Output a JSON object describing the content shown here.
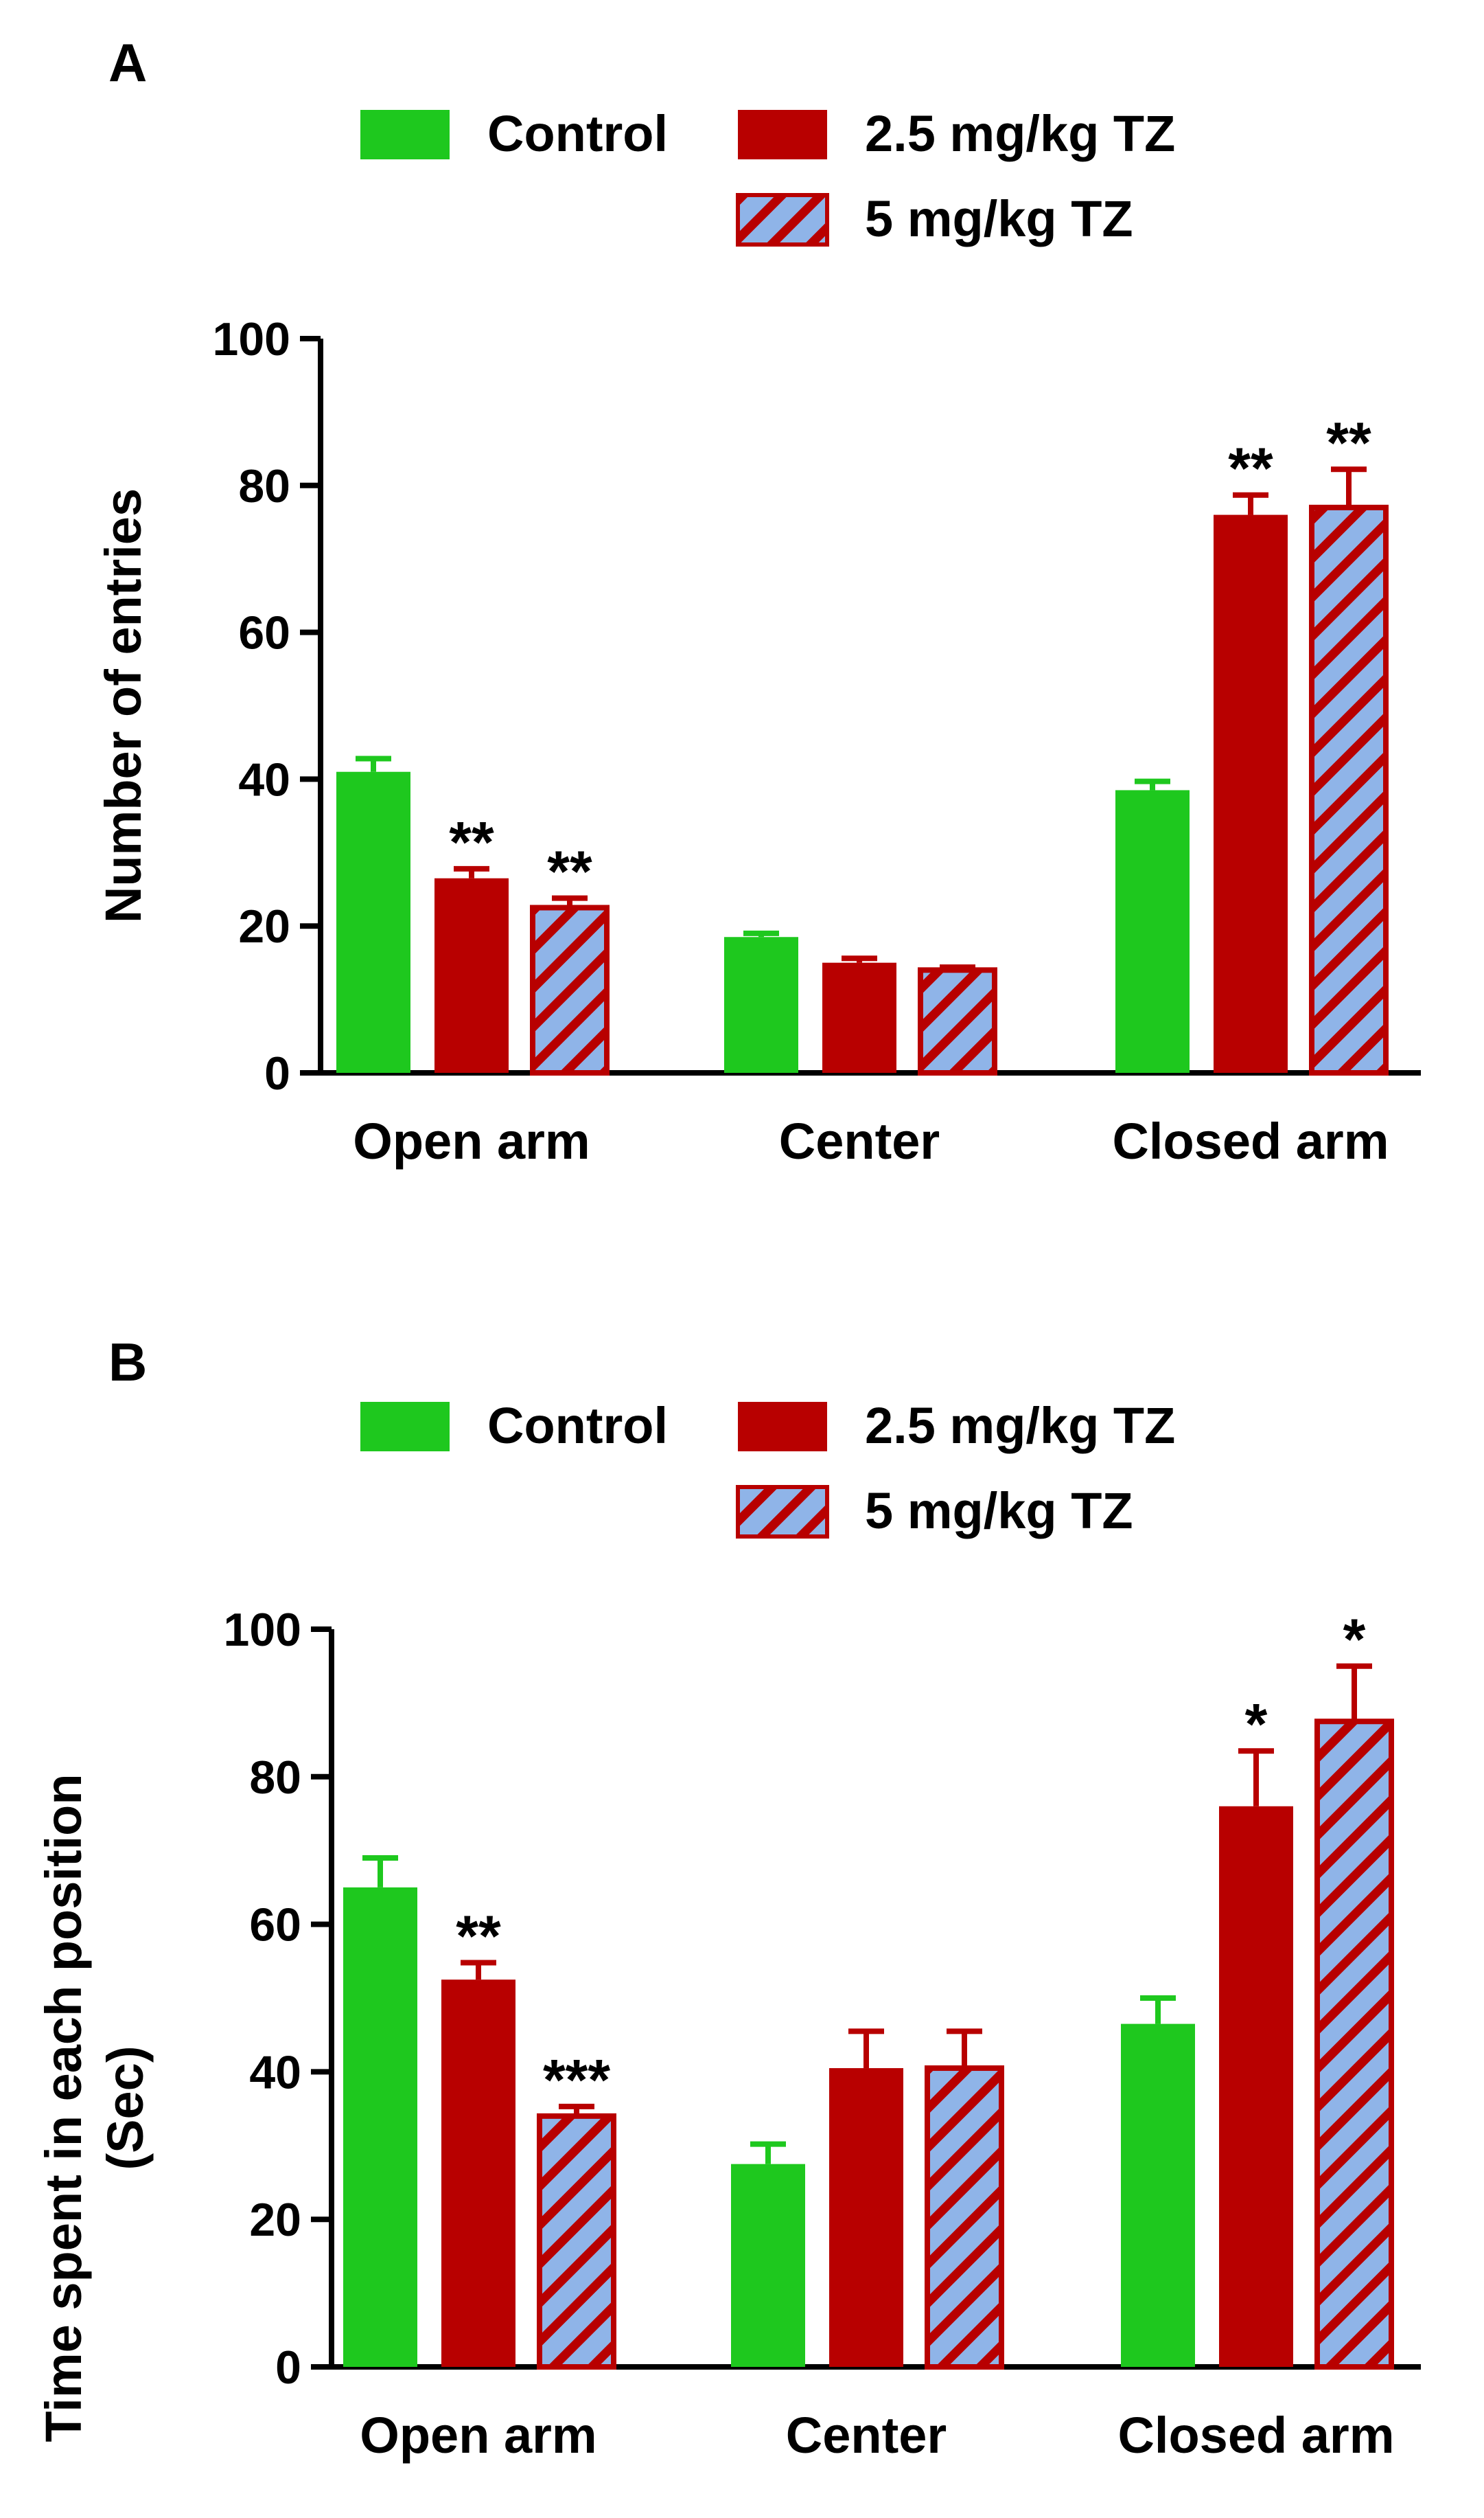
{
  "colors": {
    "control": "#1ec81e",
    "tz_2_5": "#b80000",
    "tz_5_fill": "#8fb4e8",
    "tz_5_stripe": "#b80000",
    "axis": "#000000"
  },
  "chart_data": [
    {
      "panel": "A",
      "type": "bar",
      "title": "",
      "legend": [
        "Control",
        "2.5 mg/kg TZ",
        "5 mg/kg TZ"
      ],
      "legend_position": "top",
      "categories": [
        "Open arm",
        "Center",
        "Closed arm"
      ],
      "xlabel": "",
      "ylabel": "Number of entries",
      "ylim": [
        0,
        100
      ],
      "yticks": [
        0,
        20,
        40,
        60,
        80,
        100
      ],
      "series": [
        {
          "name": "Control",
          "values": [
            41,
            18.5,
            38.5
          ],
          "errors": [
            1.8,
            0.5,
            1.2
          ],
          "significance": [
            "",
            "",
            ""
          ]
        },
        {
          "name": "2.5 mg/kg TZ",
          "values": [
            26.5,
            15,
            76
          ],
          "errors": [
            1.3,
            0.6,
            2.7
          ],
          "significance": [
            "**",
            "",
            "**"
          ]
        },
        {
          "name": "5 mg/kg TZ",
          "values": [
            22.5,
            14,
            77
          ],
          "errors": [
            1.3,
            0.4,
            5.2
          ],
          "significance": [
            "**",
            "",
            "**"
          ]
        }
      ]
    },
    {
      "panel": "B",
      "type": "bar",
      "title": "",
      "legend": [
        "Control",
        "2.5 mg/kg TZ",
        "5 mg/kg TZ"
      ],
      "legend_position": "top",
      "categories": [
        "Open arm",
        "Center",
        "Closed arm"
      ],
      "xlabel": "",
      "ylabel": [
        "Time spent in each position",
        "(Sec)"
      ],
      "ylim": [
        0,
        100
      ],
      "yticks": [
        0,
        20,
        40,
        60,
        80,
        100
      ],
      "series": [
        {
          "name": "Control",
          "values": [
            65,
            27.5,
            46.5
          ],
          "errors": [
            4,
            2.7,
            3.5
          ],
          "significance": [
            "",
            "",
            ""
          ]
        },
        {
          "name": "2.5 mg/kg TZ",
          "values": [
            52.5,
            40.5,
            76
          ],
          "errors": [
            2.3,
            5,
            7.5
          ],
          "significance": [
            "**",
            "",
            "*"
          ]
        },
        {
          "name": "5 mg/kg TZ",
          "values": [
            34,
            40.5,
            87.5
          ],
          "errors": [
            1.3,
            5,
            7.5
          ],
          "significance": [
            "***",
            "",
            "*"
          ]
        }
      ]
    }
  ]
}
